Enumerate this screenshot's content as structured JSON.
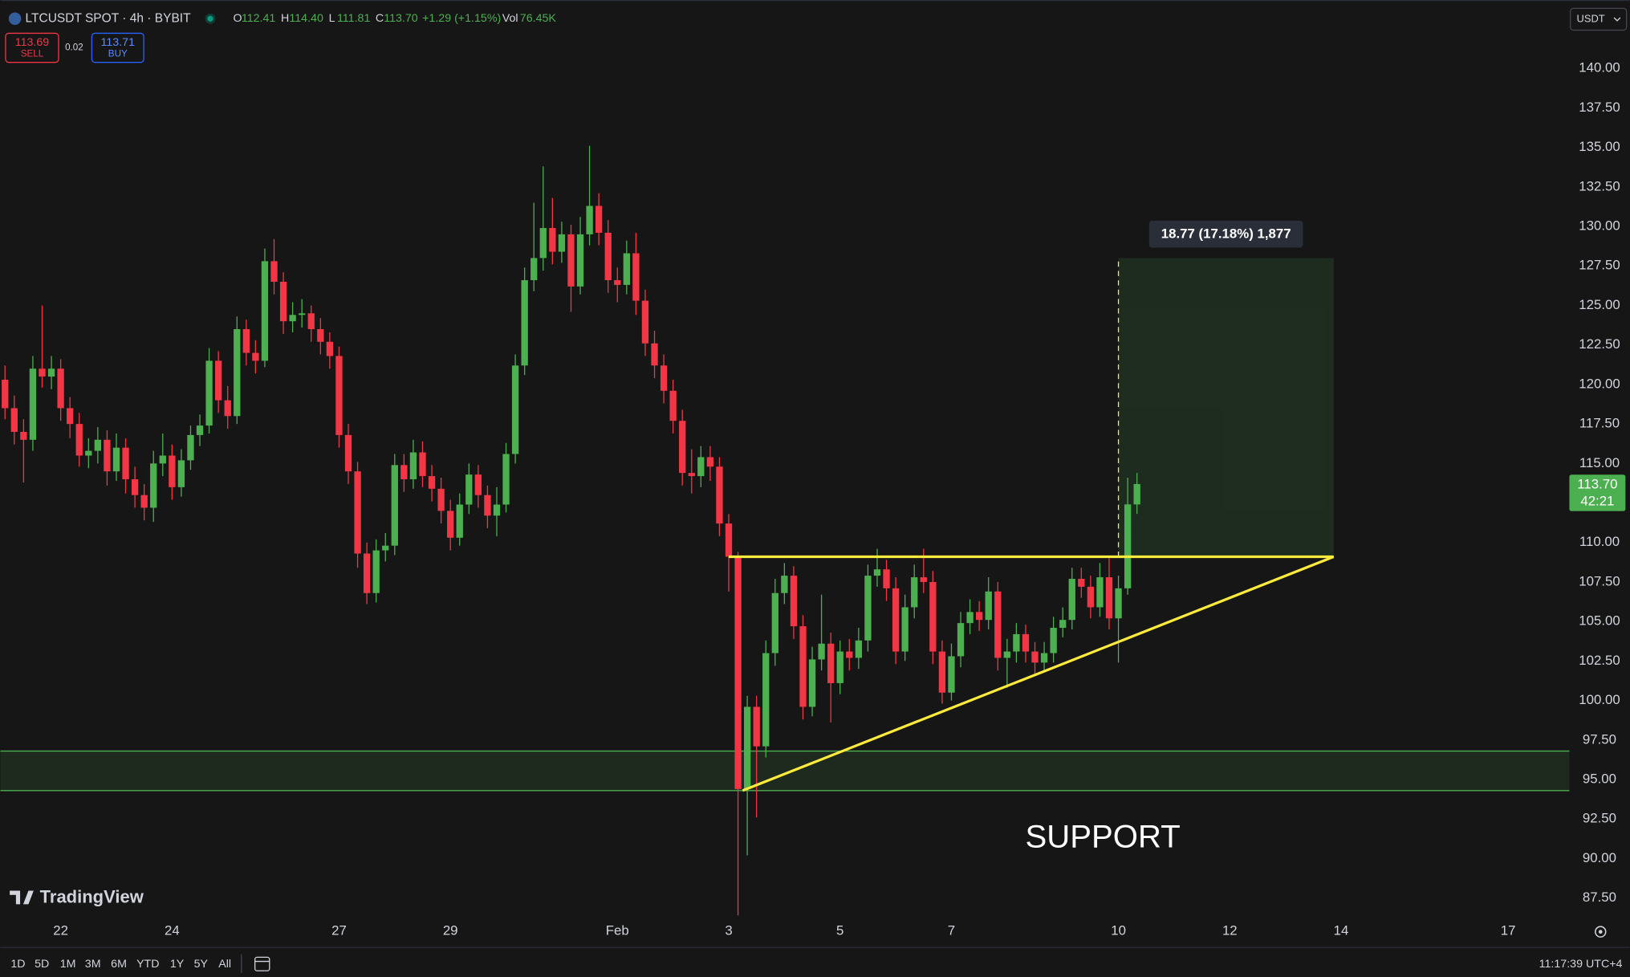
{
  "header": {
    "symbol": "LTCUSDT SPOT · 4h · BYBIT",
    "ohlc": [
      {
        "key": "O",
        "value": "112.41"
      },
      {
        "key": "H",
        "value": "114.40"
      },
      {
        "key": "L",
        "value": "111.81"
      },
      {
        "key": "C",
        "value": "113.70"
      }
    ],
    "change": "+1.29 (+1.15%)",
    "volume_key": "Vol",
    "volume": "76.45K",
    "sell_price": "113.69",
    "sell": "SELL",
    "spread": "0.02",
    "buy_price": "113.71",
    "buy": "BUY",
    "currency": "USDT"
  },
  "chart_data": {
    "type": "candlestick",
    "up_color": "#4caf50",
    "down_color": "#f23645",
    "open": [
      120.3,
      118.5,
      117,
      116.5,
      121,
      120.5,
      121,
      118.5,
      117.5,
      115.5,
      115.8,
      116.5,
      114.5,
      116,
      114,
      113,
      112.2,
      115,
      115.5,
      113.5,
      115.2,
      116.8,
      117.4,
      121.5,
      119,
      118,
      123.5,
      122,
      121.5,
      127.8,
      126.5,
      124,
      124.4,
      124.5,
      123.5,
      122.7,
      121.8,
      116.8,
      114.5,
      109.3,
      106.8,
      109.5,
      109.8,
      114.9,
      114,
      115.7,
      114.2,
      113.4,
      112,
      110.3,
      112.4,
      114.3,
      113,
      111.7,
      112.4,
      115.6,
      121.2,
      126.6,
      128,
      129.9,
      128.4,
      129.5,
      126.2,
      129.5,
      131.3,
      129.6,
      126.6,
      126.3,
      128.3,
      125.3,
      122.6,
      121.2,
      119.6,
      117.7,
      114.4,
      114.2,
      115.4,
      114.8,
      111.2,
      109.1,
      94.4,
      99.6,
      97.1,
      103,
      106.8,
      107.9,
      104.7,
      99.6,
      102.6,
      103.6,
      101.1,
      103.1,
      102.7,
      103.8,
      107.9,
      108.3,
      107.1,
      103.1,
      105.9,
      107.8,
      107.5,
      103.1,
      100.5,
      102.8,
      104.9,
      105.6,
      105.1,
      106.9,
      102.7,
      103.1,
      104.2,
      103.1,
      102.4,
      103,
      104.6,
      105.1,
      107.7,
      107.2,
      105.9,
      107.8,
      105.2,
      107.1,
      112.41
    ],
    "high": [
      121.2,
      119.3,
      117.8,
      121.8,
      125,
      121.8,
      121.6,
      119.2,
      118.2,
      116.6,
      117.3,
      117.1,
      116.9,
      116.6,
      114.8,
      113.7,
      115.8,
      116.9,
      116.2,
      115.9,
      117.4,
      118.1,
      122.3,
      122.1,
      119.9,
      124.3,
      124.1,
      122.8,
      128.6,
      129.2,
      127.1,
      125.2,
      125.4,
      125,
      124.2,
      123.3,
      122.4,
      117.5,
      115.1,
      110,
      110.2,
      110.6,
      115.6,
      115.6,
      116.5,
      116.4,
      114.9,
      114.1,
      112.7,
      113.1,
      115,
      114.9,
      113.6,
      113.5,
      116.3,
      121.9,
      127.4,
      131.5,
      133.8,
      131.8,
      130.3,
      130.1,
      130.6,
      135.1,
      132.1,
      130.4,
      127.4,
      129.1,
      129.6,
      126,
      123.4,
      121.9,
      120.3,
      118.4,
      115.9,
      116.1,
      116.1,
      115.4,
      111.8,
      109.4,
      100.3,
      100.3,
      103.8,
      107.7,
      108.7,
      108.5,
      105.4,
      103.4,
      106.7,
      104.3,
      103.8,
      103.9,
      104.6,
      108.6,
      109.6,
      108.9,
      107.8,
      106.7,
      108.6,
      109.6,
      108.2,
      103.8,
      103.6,
      105.6,
      106.4,
      106.3,
      107.8,
      107.5,
      103.9,
      104.9,
      104.8,
      103.7,
      103.7,
      105.3,
      105.9,
      108.4,
      108.4,
      107.9,
      108.7,
      109,
      107.9,
      114.1,
      114.4
    ],
    "low": [
      117.8,
      116.2,
      113.8,
      115.8,
      119.8,
      119.7,
      117.7,
      116.6,
      114.8,
      114.7,
      115,
      113.6,
      113.9,
      113.1,
      112.2,
      111.4,
      111.3,
      114.2,
      112.7,
      112.9,
      114.6,
      116.1,
      116.9,
      118.2,
      117.2,
      117.5,
      121.2,
      120.7,
      121.1,
      125.7,
      123.2,
      123.3,
      123.6,
      122.7,
      121.9,
      121,
      116,
      113.7,
      108.4,
      106.1,
      106.2,
      108.8,
      109.2,
      113.2,
      113.4,
      113.5,
      112.6,
      111.2,
      109.5,
      109.8,
      111.8,
      112.2,
      110.9,
      110.4,
      111.9,
      115,
      120.6,
      125.9,
      127.2,
      127.6,
      127.7,
      124.6,
      125.7,
      128.8,
      128.8,
      125.8,
      125.2,
      125.7,
      124.4,
      121.8,
      120.4,
      118.8,
      116.9,
      113.6,
      113.1,
      113.5,
      113.9,
      110.4,
      106.9,
      86.4,
      90.2,
      92.6,
      96.4,
      102.2,
      106.1,
      103.9,
      98.8,
      99,
      101.9,
      98.6,
      100.4,
      101.9,
      102,
      103.1,
      107.2,
      106.3,
      102.3,
      102.5,
      105.2,
      106.8,
      102.3,
      99.8,
      100,
      102.1,
      104.2,
      104.4,
      104.5,
      101.9,
      100.8,
      102.4,
      102.4,
      101.7,
      101.8,
      102.4,
      104,
      104.5,
      106.5,
      105.2,
      105.3,
      104.5,
      102.4,
      106.7,
      111.81
    ],
    "close": [
      118.5,
      117,
      116.5,
      121,
      120.5,
      121,
      118.5,
      117.5,
      115.5,
      115.8,
      116.5,
      114.5,
      116,
      114,
      113,
      112.2,
      115,
      115.5,
      113.5,
      115.2,
      116.8,
      117.4,
      121.5,
      119,
      118,
      123.5,
      122,
      121.5,
      127.8,
      126.5,
      124,
      124.4,
      124.5,
      123.5,
      122.7,
      121.8,
      116.8,
      114.5,
      109.3,
      106.8,
      109.5,
      109.8,
      114.9,
      114,
      115.7,
      114.2,
      113.4,
      112,
      110.3,
      112.4,
      114.3,
      113,
      111.7,
      112.4,
      115.6,
      121.2,
      126.6,
      128,
      129.9,
      128.4,
      129.5,
      126.2,
      129.5,
      131.3,
      129.6,
      126.6,
      126.3,
      128.3,
      125.3,
      122.6,
      121.2,
      119.6,
      117.7,
      114.4,
      114.2,
      115.4,
      114.8,
      111.2,
      109.1,
      94.4,
      99.6,
      97.1,
      103,
      106.8,
      107.9,
      104.7,
      99.6,
      102.6,
      103.6,
      101.1,
      103.1,
      102.7,
      103.8,
      107.9,
      108.3,
      107.1,
      103.1,
      105.9,
      107.8,
      107.5,
      103.1,
      100.5,
      102.8,
      104.9,
      105.6,
      105.1,
      106.9,
      102.7,
      103.1,
      104.2,
      103.1,
      102.4,
      103,
      104.6,
      105.1,
      107.7,
      107.2,
      105.9,
      107.8,
      105.2,
      107.1,
      112.41,
      113.7
    ],
    "xlim": [
      -0.5,
      168.6
    ],
    "xticks": [
      {
        "value": 6,
        "label": "22"
      },
      {
        "value": 18,
        "label": "24"
      },
      {
        "value": 36,
        "label": "27"
      },
      {
        "value": 48,
        "label": "29"
      },
      {
        "value": 66,
        "label": "Feb"
      },
      {
        "value": 78,
        "label": "3"
      },
      {
        "value": 90,
        "label": "5"
      },
      {
        "value": 102,
        "label": "7"
      },
      {
        "value": 120,
        "label": "10"
      },
      {
        "value": 132,
        "label": "12"
      },
      {
        "value": 144,
        "label": "14"
      },
      {
        "value": 162,
        "label": "17"
      }
    ],
    "ylim": [
      86.45,
      144.0
    ],
    "yticks": [
      {
        "value": 87.5,
        "label": "87.50"
      },
      {
        "value": 90,
        "label": "90.00"
      },
      {
        "value": 92.5,
        "label": "92.50"
      },
      {
        "value": 95,
        "label": "95.00"
      },
      {
        "value": 97.5,
        "label": "97.50"
      },
      {
        "value": 100,
        "label": "100.00"
      },
      {
        "value": 102.5,
        "label": "102.50"
      },
      {
        "value": 105,
        "label": "105.00"
      },
      {
        "value": 107.5,
        "label": "107.50"
      },
      {
        "value": 110,
        "label": "110.00"
      },
      {
        "value": 112.5,
        "label": "112.50"
      },
      {
        "value": 115,
        "label": "115.00"
      },
      {
        "value": 117.5,
        "label": "117.50"
      },
      {
        "value": 120,
        "label": "120.00"
      },
      {
        "value": 122.5,
        "label": "122.50"
      },
      {
        "value": 125,
        "label": "125.00"
      },
      {
        "value": 127.5,
        "label": "127.50"
      },
      {
        "value": 130,
        "label": "130.00"
      },
      {
        "value": 132.5,
        "label": "132.50"
      },
      {
        "value": 135,
        "label": "135.00"
      },
      {
        "value": 137.5,
        "label": "137.50"
      },
      {
        "value": 140,
        "label": "140.00"
      }
    ],
    "grid": false,
    "last_price": {
      "value": 113.7,
      "label": "113.70",
      "countdown": "42:21"
    },
    "drawings": {
      "support_zone": {
        "ylim": [
          94.3,
          96.8
        ],
        "label": "SUPPORT",
        "color": "#4caf50"
      },
      "resistance": {
        "x": [
          78,
          143.2
        ],
        "y": 109.1,
        "color": "#ffeb3b"
      },
      "trendline": {
        "x": [
          79.5,
          143.2
        ],
        "y": [
          94.3,
          109.1
        ],
        "color": "#ffeb3b"
      },
      "target": {
        "x": [
          120,
          143.2
        ],
        "y": [
          109.1,
          128
        ],
        "label": "18.77 (17.18%) 1,877",
        "color": "#4caf50"
      }
    }
  },
  "branding": "TradingView",
  "toolbar": {
    "ranges": [
      "1D",
      "5D",
      "1M",
      "3M",
      "6M",
      "YTD",
      "1Y",
      "5Y",
      "All"
    ],
    "clock": "11:17:39 UTC+4"
  }
}
